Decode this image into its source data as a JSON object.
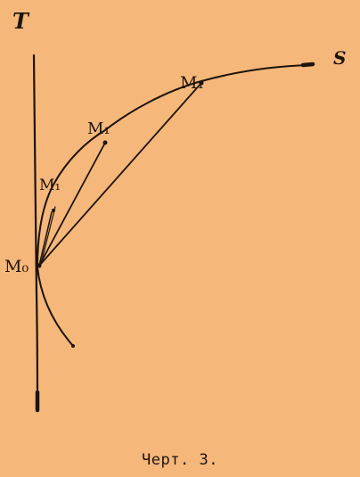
{
  "figure": {
    "labels": {
      "T": "T",
      "S": "S",
      "M0": "M₀",
      "M1": "M₁",
      "M2": "M₁",
      "M3": "M₁"
    },
    "caption": "Черт. 3."
  }
}
